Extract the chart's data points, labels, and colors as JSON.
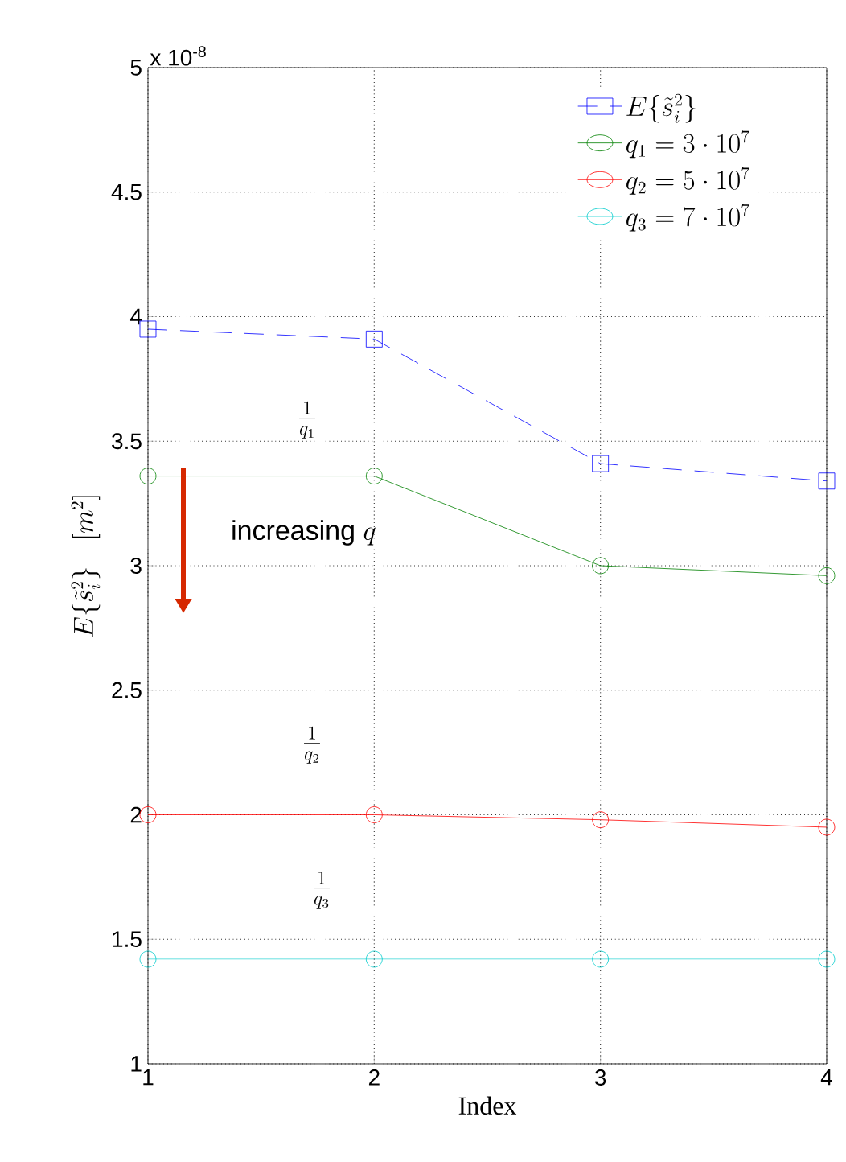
{
  "chart_data": {
    "type": "line",
    "x": [
      1,
      2,
      3,
      4
    ],
    "xlabel": "Index",
    "ylabel": "E\\{\\tilde{s}_i^2\\} \\quad [m^2]",
    "xlim": [
      1,
      4
    ],
    "xticks": [
      1,
      2,
      3,
      4
    ],
    "ylim": [
      1,
      5
    ],
    "yticks": [
      1,
      1.5,
      2,
      2.5,
      3,
      3.5,
      4,
      4.5,
      5
    ],
    "grid": true,
    "legend": "top right",
    "series": [
      {
        "name": "E\\{\\tilde{s}_i^2\\}",
        "color": "#0000ff",
        "marker": "square",
        "line_style": "dashed",
        "values": [
          3.95,
          3.91,
          3.41,
          3.34
        ]
      },
      {
        "name": "q_1 = 3 \\cdot 10^7",
        "color": "#008000",
        "marker": "circle",
        "line_style": "solid",
        "values": [
          3.36,
          3.36,
          3.0,
          2.96
        ]
      },
      {
        "name": "q_2 = 5 \\cdot 10^7",
        "color": "#ff0000",
        "marker": "circle",
        "line_style": "solid",
        "values": [
          2.0,
          2.0,
          1.98,
          1.95
        ]
      },
      {
        "name": "q_3 = 7 \\cdot 10^7",
        "color": "#00cccc",
        "marker": "circle",
        "line_style": "solid",
        "values": [
          1.42,
          1.42,
          1.42,
          1.42
        ]
      }
    ],
    "annotations": [
      "x 10$^{-8}$",
      "\\frac{1}{q_1}",
      "\\frac{1}{q_2}",
      "\\frac{1}{q_3}",
      "\\mbox{increasing } q"
    ]
  }
}
